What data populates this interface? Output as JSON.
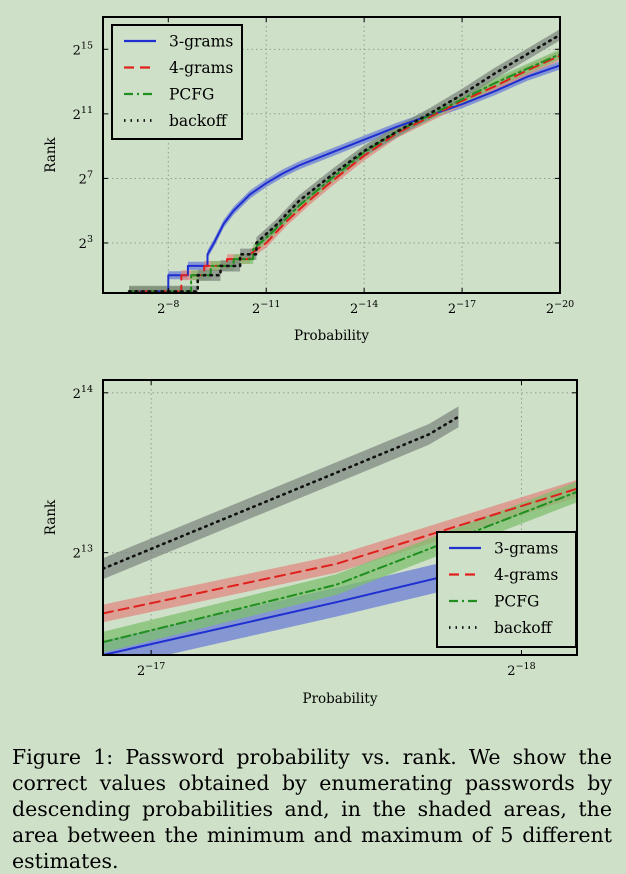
{
  "colors": {
    "background": "#cfe0c9",
    "3-grams": "#1f2fd0",
    "4-grams": "#e0201c",
    "PCFG": "#1f8f1f",
    "backoff": "#111111",
    "band_3-grams": "#6b7fd6",
    "band_4-grams": "#e08a80",
    "band_PCFG": "#7fbf6f",
    "band_backoff": "#7f8a7f"
  },
  "caption": "Figure 1: Password probability vs. rank. We show the correct values obtained by enumerating passwords by descending probabilities and, in the shaded areas, the area between the minimum and maximum of 5 different estimates.",
  "chart_data": [
    {
      "type": "line",
      "title": "",
      "xlabel": "Probability",
      "ylabel": "Rank",
      "x_scale": "log2-reversed",
      "y_scale": "log2",
      "x_exponent_range": [
        -6.0,
        -20.0
      ],
      "y_exponent_range": [
        -0.1,
        17.0
      ],
      "x_ticks": [
        {
          "exp": -8,
          "label": "2−8"
        },
        {
          "exp": -11,
          "label": "2−11"
        },
        {
          "exp": -14,
          "label": "2−14"
        },
        {
          "exp": -17,
          "label": "2−17"
        },
        {
          "exp": -20,
          "label": "2−20"
        }
      ],
      "y_ticks": [
        {
          "exp": 3,
          "label": "23"
        },
        {
          "exp": 7,
          "label": "27"
        },
        {
          "exp": 11,
          "label": "211"
        },
        {
          "exp": 15,
          "label": "215"
        }
      ],
      "grid": true,
      "legend_position": "top-left",
      "series": [
        {
          "name": "3-grams",
          "style": "solid",
          "band_width": 0.25,
          "points": [
            [
              -6.8,
              0
            ],
            [
              -8.0,
              0
            ],
            [
              -8.0,
              1
            ],
            [
              -8.6,
              1
            ],
            [
              -8.6,
              1.58
            ],
            [
              -9.2,
              1.58
            ],
            [
              -9.2,
              2.3
            ],
            [
              -9.4,
              3.0
            ],
            [
              -9.7,
              4.2
            ],
            [
              -10.0,
              5.0
            ],
            [
              -10.5,
              6.0
            ],
            [
              -11.0,
              6.7
            ],
            [
              -11.5,
              7.3
            ],
            [
              -12.0,
              7.8
            ],
            [
              -13.0,
              8.6
            ],
            [
              -14.0,
              9.4
            ],
            [
              -15.0,
              10.2
            ],
            [
              -16.0,
              10.9
            ],
            [
              -17.0,
              11.6
            ],
            [
              -18.0,
              12.4
            ],
            [
              -19.0,
              13.3
            ],
            [
              -20.0,
              14.0
            ]
          ]
        },
        {
          "name": "4-grams",
          "style": "dashed",
          "band_width": 0.3,
          "points": [
            [
              -6.8,
              0
            ],
            [
              -8.4,
              0
            ],
            [
              -8.4,
              1
            ],
            [
              -9.1,
              1
            ],
            [
              -9.1,
              1.58
            ],
            [
              -9.8,
              1.58
            ],
            [
              -9.8,
              2.0
            ],
            [
              -10.5,
              2.0
            ],
            [
              -10.5,
              2.3
            ],
            [
              -11.0,
              3.0
            ],
            [
              -11.6,
              4.3
            ],
            [
              -12.3,
              5.6
            ],
            [
              -13.0,
              6.8
            ],
            [
              -14.0,
              8.4
            ],
            [
              -15.0,
              9.8
            ],
            [
              -16.0,
              10.8
            ],
            [
              -17.0,
              11.8
            ],
            [
              -18.0,
              12.7
            ],
            [
              -19.0,
              13.7
            ],
            [
              -20.0,
              14.6
            ]
          ]
        },
        {
          "name": "PCFG",
          "style": "dashdot",
          "band_width": 0.3,
          "points": [
            [
              -6.8,
              0
            ],
            [
              -8.7,
              0
            ],
            [
              -8.7,
              1
            ],
            [
              -9.3,
              1
            ],
            [
              -9.3,
              1.58
            ],
            [
              -10.0,
              1.58
            ],
            [
              -10.0,
              2.0
            ],
            [
              -10.6,
              2.0
            ],
            [
              -10.6,
              2.6
            ],
            [
              -11.2,
              3.7
            ],
            [
              -12.0,
              5.3
            ],
            [
              -13.0,
              7.0
            ],
            [
              -14.0,
              8.6
            ],
            [
              -15.0,
              9.9
            ],
            [
              -16.0,
              10.9
            ],
            [
              -17.0,
              11.9
            ],
            [
              -18.0,
              12.9
            ],
            [
              -19.0,
              13.8
            ],
            [
              -20.0,
              14.7
            ]
          ]
        },
        {
          "name": "backoff",
          "style": "dotted",
          "band_width": 0.35,
          "points": [
            [
              -6.8,
              0
            ],
            [
              -8.9,
              0
            ],
            [
              -8.9,
              1
            ],
            [
              -9.6,
              1
            ],
            [
              -9.6,
              1.58
            ],
            [
              -10.2,
              1.58
            ],
            [
              -10.2,
              2.3
            ],
            [
              -10.7,
              2.3
            ],
            [
              -10.7,
              3.0
            ],
            [
              -11.3,
              4.1
            ],
            [
              -12.0,
              5.6
            ],
            [
              -13.0,
              7.2
            ],
            [
              -14.0,
              8.7
            ],
            [
              -15.0,
              9.9
            ],
            [
              -16.0,
              11.0
            ],
            [
              -17.0,
              12.2
            ],
            [
              -18.0,
              13.5
            ],
            [
              -19.0,
              14.7
            ],
            [
              -20.0,
              15.9
            ]
          ]
        }
      ]
    },
    {
      "type": "line",
      "title": "",
      "xlabel": "Probability",
      "ylabel": "Rank",
      "x_scale": "log2-reversed",
      "y_scale": "log2",
      "x_exponent_range": [
        -16.87,
        -18.15
      ],
      "y_exponent_range": [
        12.36,
        14.08
      ],
      "x_ticks": [
        {
          "exp": -17,
          "label": "2−17"
        },
        {
          "exp": -18,
          "label": "2−18"
        }
      ],
      "y_ticks": [
        {
          "exp": 13,
          "label": "213"
        },
        {
          "exp": 14,
          "label": "214"
        }
      ],
      "grid": true,
      "legend_position": "bottom-right",
      "series": [
        {
          "name": "3-grams",
          "style": "solid",
          "band_width": 0.09,
          "points": [
            [
              -16.87,
              12.36
            ],
            [
              -17.5,
              12.69
            ],
            [
              -18.15,
              13.05
            ]
          ]
        },
        {
          "name": "4-grams",
          "style": "dashed",
          "band_width": 0.055,
          "points": [
            [
              -16.87,
              12.62
            ],
            [
              -17.5,
              12.93
            ],
            [
              -18.15,
              13.4
            ]
          ]
        },
        {
          "name": "PCFG",
          "style": "dashdot",
          "band_width": 0.065,
          "points": [
            [
              -16.87,
              12.44
            ],
            [
              -17.5,
              12.8
            ],
            [
              -18.15,
              13.38
            ]
          ]
        },
        {
          "name": "backoff",
          "style": "dotted",
          "band_width": 0.065,
          "points": [
            [
              -16.87,
              12.9
            ],
            [
              -17.5,
              13.5
            ],
            [
              -17.75,
              13.74
            ],
            [
              -17.83,
              13.85
            ]
          ]
        }
      ]
    }
  ]
}
